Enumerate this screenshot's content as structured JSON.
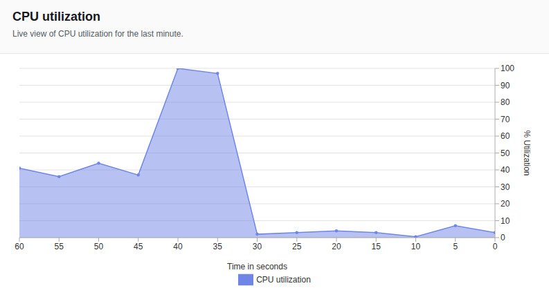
{
  "chart_data": {
    "type": "area",
    "title": "CPU utilization",
    "subtitle": "Live view of CPU utilization for the last minute.",
    "x_label": "Time in seconds",
    "y_label": "% Utilization",
    "x": [
      60,
      55,
      50,
      45,
      40,
      35,
      30,
      25,
      20,
      15,
      10,
      5,
      0
    ],
    "series": [
      {
        "name": "CPU utilization",
        "color": "#6f86e8",
        "values": [
          41,
          36,
          44,
          37,
          100,
          97,
          2,
          3,
          4,
          3,
          0.5,
          7,
          3
        ]
      }
    ],
    "xlim": [
      60,
      0
    ],
    "xticks": [
      60,
      55,
      50,
      45,
      40,
      35,
      30,
      25,
      20,
      15,
      10,
      5,
      0
    ],
    "ylim": [
      0,
      100
    ],
    "yticks": [
      0,
      10,
      20,
      30,
      40,
      50,
      60,
      70,
      80,
      90,
      100
    ],
    "grid": true,
    "legend": "bottom",
    "marker": "circle"
  }
}
